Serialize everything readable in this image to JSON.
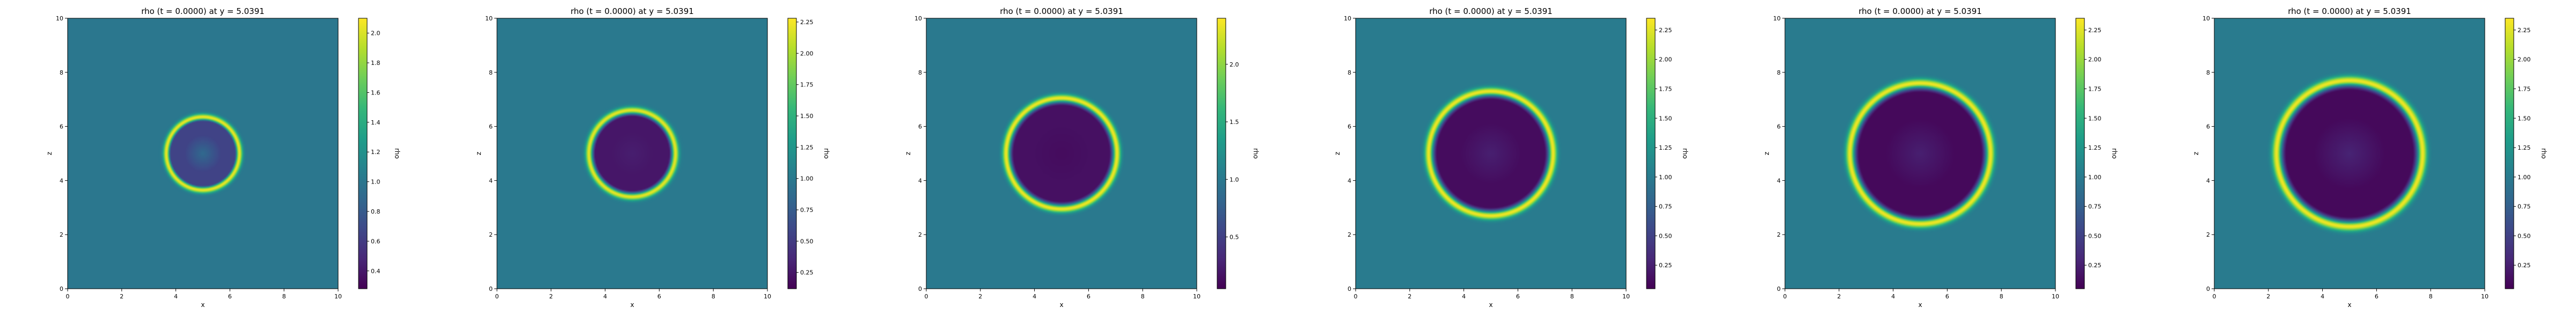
{
  "chart_data": [
    {
      "type": "heatmap",
      "title": "rho (t = 0.0000) at y = 5.0391",
      "xlabel": "x",
      "ylabel": "z",
      "xlim": [
        0,
        10
      ],
      "ylim": [
        0,
        10
      ],
      "xticks": [
        "0",
        "2",
        "4",
        "6",
        "8",
        "10"
      ],
      "yticks": [
        "0",
        "2",
        "4",
        "6",
        "8",
        "10"
      ],
      "field": {
        "center": [
          5,
          5
        ],
        "background": 1.0,
        "ring_radius": 1.35,
        "ring_width": 0.12,
        "ring_peak": 2.05,
        "interior": 0.65,
        "core": 0.9
      },
      "colorbar": {
        "label": "rho",
        "min": 0.28,
        "max": 2.1,
        "ticks": [
          "0.4",
          "0.6",
          "0.8",
          "1.0",
          "1.2",
          "1.4",
          "1.6",
          "1.8",
          "2.0"
        ]
      }
    },
    {
      "type": "heatmap",
      "title": "rho (t = 0.0000) at y = 5.0391",
      "xlabel": "x",
      "ylabel": "z",
      "xlim": [
        0,
        10
      ],
      "ylim": [
        0,
        10
      ],
      "xticks": [
        "0",
        "2",
        "4",
        "6",
        "8",
        "10"
      ],
      "yticks": [
        "0",
        "2",
        "4",
        "6",
        "8",
        "10"
      ],
      "field": {
        "center": [
          5,
          5
        ],
        "background": 1.0,
        "ring_radius": 1.6,
        "ring_width": 0.13,
        "ring_peak": 2.2,
        "interior": 0.25,
        "core": 0.3
      },
      "colorbar": {
        "label": "rho",
        "min": 0.12,
        "max": 2.28,
        "ticks": [
          "0.25",
          "0.50",
          "0.75",
          "1.00",
          "1.25",
          "1.50",
          "1.75",
          "2.00",
          "2.25"
        ]
      }
    },
    {
      "type": "heatmap",
      "title": "rho (t = 0.0000) at y = 5.0391",
      "xlabel": "x",
      "ylabel": "z",
      "xlim": [
        0,
        10
      ],
      "ylim": [
        0,
        10
      ],
      "xticks": [
        "0",
        "2",
        "4",
        "6",
        "8",
        "10"
      ],
      "yticks": [
        "0",
        "2",
        "4",
        "6",
        "8",
        "10"
      ],
      "field": {
        "center": [
          5,
          5
        ],
        "background": 1.0,
        "ring_radius": 2.05,
        "ring_width": 0.14,
        "ring_peak": 2.35,
        "interior": 0.15,
        "core": 0.12
      },
      "colorbar": {
        "label": "rho",
        "min": 0.05,
        "max": 2.4,
        "ticks": [
          "0.5",
          "1.0",
          "1.5",
          "2.0"
        ]
      }
    },
    {
      "type": "heatmap",
      "title": "rho (t = 0.0000) at y = 5.0391",
      "xlabel": "x",
      "ylabel": "z",
      "xlim": [
        0,
        10
      ],
      "ylim": [
        0,
        10
      ],
      "xticks": [
        "0",
        "2",
        "4",
        "6",
        "8",
        "10"
      ],
      "yticks": [
        "0",
        "2",
        "4",
        "6",
        "8",
        "10"
      ],
      "field": {
        "center": [
          5,
          5
        ],
        "background": 1.0,
        "ring_radius": 2.3,
        "ring_width": 0.15,
        "ring_peak": 2.3,
        "interior": 0.12,
        "core": 0.25
      },
      "colorbar": {
        "label": "rho",
        "min": 0.05,
        "max": 2.35,
        "ticks": [
          "0.25",
          "0.50",
          "0.75",
          "1.00",
          "1.25",
          "1.50",
          "1.75",
          "2.00",
          "2.25"
        ]
      }
    },
    {
      "type": "heatmap",
      "title": "rho (t = 0.0000) at y = 5.0391",
      "xlabel": "x",
      "ylabel": "z",
      "xlim": [
        0,
        10
      ],
      "ylim": [
        0,
        10
      ],
      "xticks": [
        "0",
        "2",
        "4",
        "6",
        "8",
        "10"
      ],
      "yticks": [
        "0",
        "2",
        "4",
        "6",
        "8",
        "10"
      ],
      "field": {
        "center": [
          5,
          5
        ],
        "background": 1.0,
        "ring_radius": 2.6,
        "ring_width": 0.16,
        "ring_peak": 2.3,
        "interior": 0.1,
        "core": 0.25
      },
      "colorbar": {
        "label": "rho",
        "min": 0.05,
        "max": 2.35,
        "ticks": [
          "0.25",
          "0.50",
          "0.75",
          "1.00",
          "1.25",
          "1.50",
          "1.75",
          "2.00",
          "2.25"
        ]
      }
    },
    {
      "type": "heatmap",
      "title": "rho (t = 0.0000) at y = 5.0391",
      "xlabel": "x",
      "ylabel": "z",
      "xlim": [
        0,
        10
      ],
      "ylim": [
        0,
        10
      ],
      "xticks": [
        "0",
        "2",
        "4",
        "6",
        "8",
        "10"
      ],
      "yticks": [
        "0",
        "2",
        "4",
        "6",
        "8",
        "10"
      ],
      "field": {
        "center": [
          5,
          5
        ],
        "background": 1.0,
        "ring_radius": 2.7,
        "ring_width": 0.17,
        "ring_peak": 2.3,
        "interior": 0.1,
        "core": 0.28
      },
      "colorbar": {
        "label": "rho",
        "min": 0.05,
        "max": 2.35,
        "ticks": [
          "0.25",
          "0.50",
          "0.75",
          "1.00",
          "1.25",
          "1.50",
          "1.75",
          "2.00",
          "2.25"
        ]
      }
    }
  ],
  "colors": {
    "viridis": [
      "#440154",
      "#482878",
      "#3e4989",
      "#31688e",
      "#26828e",
      "#1f9e89",
      "#35b779",
      "#6ece58",
      "#b5de2b",
      "#fde725"
    ]
  }
}
